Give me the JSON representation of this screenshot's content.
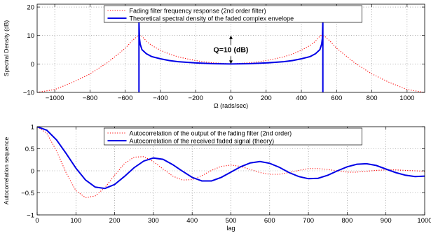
{
  "chart_data": [
    {
      "type": "line",
      "xlabel": "Ω (rads/sec)",
      "ylabel": "Spectral Density (dB)",
      "xlim": [
        -1100,
        1100
      ],
      "ylim": [
        -10,
        21
      ],
      "xticks": [
        -1000,
        -800,
        -600,
        -400,
        -200,
        0,
        200,
        400,
        600,
        800,
        1000
      ],
      "yticks": [
        -10,
        0,
        10,
        20
      ],
      "grid": true,
      "legend_position": "top-center",
      "annotation": {
        "text": "Q=10 (dB)",
        "x": 0,
        "y_from": 0,
        "y_to": 10
      },
      "series": [
        {
          "name": "Fading filter frequency response (2nd order filter)",
          "style": "dotted",
          "color": "#ff0000",
          "x": [
            -1100,
            -1000,
            -900,
            -800,
            -700,
            -600,
            -560,
            -530,
            -510,
            -500,
            -480,
            -450,
            -400,
            -350,
            -300,
            -250,
            -200,
            -150,
            -100,
            -50,
            0,
            50,
            100,
            150,
            200,
            250,
            300,
            350,
            400,
            450,
            480,
            500,
            510,
            530,
            560,
            600,
            700,
            800,
            900,
            1000,
            1100
          ],
          "y": [
            -10,
            -9.0,
            -6.5,
            -3.5,
            0.5,
            5.5,
            8.2,
            9.8,
            10.0,
            9.4,
            8.0,
            6.5,
            4.8,
            3.5,
            2.5,
            1.8,
            1.2,
            0.7,
            0.4,
            0.2,
            0.0,
            0.2,
            0.4,
            0.7,
            1.2,
            1.8,
            2.5,
            3.5,
            4.8,
            6.5,
            8.0,
            9.4,
            10.0,
            9.8,
            8.2,
            5.5,
            0.5,
            -3.5,
            -6.5,
            -9.0,
            -10
          ]
        },
        {
          "name": "Theoretical spectral density of the faded complex envelope",
          "style": "solid",
          "color": "#0000e6",
          "x": [
            -522,
            -522,
            -519,
            -515,
            -505,
            -480,
            -450,
            -400,
            -350,
            -300,
            -200,
            -100,
            0,
            100,
            200,
            300,
            350,
            400,
            450,
            480,
            505,
            515,
            519,
            522,
            522
          ],
          "y": [
            -10,
            15,
            9,
            7,
            5,
            3.6,
            2.6,
            1.8,
            1.2,
            0.8,
            0.35,
            0.08,
            0.0,
            0.08,
            0.35,
            0.8,
            1.2,
            1.8,
            2.6,
            3.6,
            5,
            7,
            9,
            15,
            -10
          ]
        }
      ]
    },
    {
      "type": "line",
      "xlabel": "lag",
      "ylabel": "Autocorrelation sequence",
      "xlim": [
        0,
        1000
      ],
      "ylim": [
        -1,
        1
      ],
      "xticks": [
        0,
        100,
        200,
        300,
        400,
        500,
        600,
        700,
        800,
        900,
        1000
      ],
      "yticks": [
        -1,
        -0.5,
        0,
        0.5,
        1
      ],
      "grid": true,
      "legend_position": "top-center",
      "series": [
        {
          "name": "Autocorrelation of the output of the fading filter (2nd order)",
          "style": "dotted",
          "color": "#ff0000",
          "x": [
            0,
            25,
            50,
            75,
            100,
            125,
            150,
            175,
            200,
            225,
            250,
            275,
            300,
            325,
            350,
            375,
            400,
            425,
            450,
            475,
            500,
            525,
            550,
            575,
            600,
            625,
            650,
            675,
            700,
            725,
            750,
            775,
            800,
            825,
            850,
            875,
            900,
            925,
            950,
            975,
            1000
          ],
          "y": [
            1.0,
            0.85,
            0.45,
            -0.05,
            -0.45,
            -0.61,
            -0.57,
            -0.38,
            -0.1,
            0.16,
            0.31,
            0.32,
            0.21,
            0.04,
            -0.12,
            -0.21,
            -0.2,
            -0.11,
            0.01,
            0.1,
            0.13,
            0.1,
            0.03,
            -0.04,
            -0.08,
            -0.08,
            -0.04,
            0.01,
            0.05,
            0.05,
            0.03,
            0.0,
            -0.03,
            -0.03,
            -0.01,
            0.01,
            0.02,
            0.02,
            0.01,
            0.0,
            -0.01
          ]
        },
        {
          "name": "Autocorrelation of the received faded signal (theory)",
          "style": "solid",
          "color": "#0000e6",
          "x": [
            0,
            25,
            50,
            75,
            100,
            125,
            150,
            175,
            200,
            225,
            250,
            275,
            300,
            325,
            350,
            375,
            400,
            425,
            450,
            475,
            500,
            525,
            550,
            575,
            600,
            625,
            650,
            675,
            700,
            725,
            750,
            775,
            800,
            825,
            850,
            875,
            900,
            925,
            950,
            975,
            1000
          ],
          "y": [
            1.0,
            0.92,
            0.7,
            0.39,
            0.06,
            -0.21,
            -0.37,
            -0.4,
            -0.31,
            -0.13,
            0.07,
            0.22,
            0.29,
            0.26,
            0.14,
            -0.01,
            -0.15,
            -0.23,
            -0.23,
            -0.15,
            -0.03,
            0.09,
            0.18,
            0.21,
            0.17,
            0.08,
            -0.04,
            -0.13,
            -0.18,
            -0.17,
            -0.1,
            0.0,
            0.09,
            0.15,
            0.16,
            0.12,
            0.04,
            -0.04,
            -0.1,
            -0.13,
            -0.12
          ]
        }
      ]
    }
  ]
}
